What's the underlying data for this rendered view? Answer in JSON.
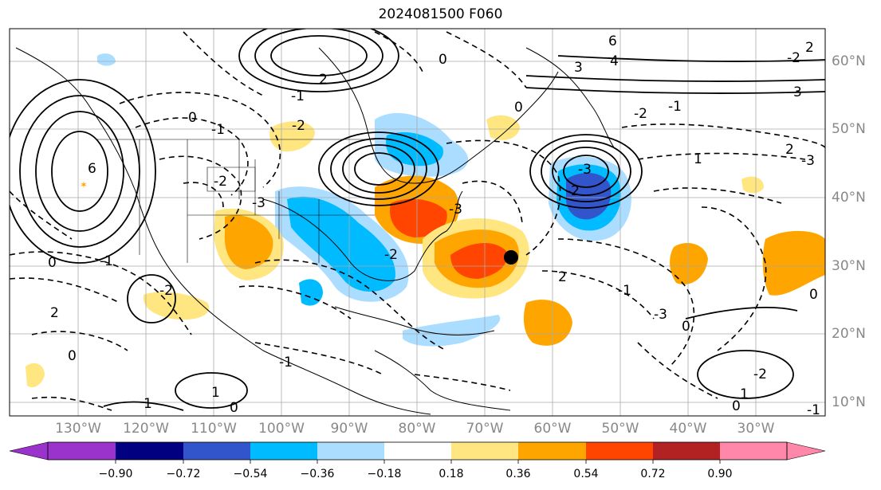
{
  "title": "2024081500 F060",
  "lon_labels": [
    "130°W",
    "120°W",
    "110°W",
    "100°W",
    "90°W",
    "80°W",
    "70°W",
    "60°W",
    "50°W",
    "40°W",
    "30°W"
  ],
  "lat_labels": [
    "60°N",
    "50°N",
    "40°N",
    "30°N",
    "20°N",
    "10°N"
  ],
  "colorbar": {
    "tick_labels": [
      "−0.90",
      "−0.72",
      "−0.54",
      "−0.36",
      "−0.18",
      "0.18",
      "0.36",
      "0.54",
      "0.72",
      "0.90"
    ],
    "colors": [
      "#9933cc",
      "#000080",
      "#3355cc",
      "#00bbff",
      "#aaddff",
      "#ffffff",
      "#ffe680",
      "#ffa500",
      "#ff4500",
      "#b22222",
      "#ff88aa"
    ]
  },
  "contour_labels": [
    "6",
    "-2",
    "0",
    "-1",
    "-3",
    "-2",
    "2",
    "-1",
    "-2",
    "-3",
    "0",
    "6",
    "4",
    "-3",
    "3",
    "-2",
    "2",
    "-1",
    "-2",
    "-3",
    "2",
    "1",
    "3",
    "-3",
    "-2",
    "0",
    "-1",
    "2",
    "0",
    "-1",
    "1",
    "0",
    "-1",
    "-2",
    "0",
    "1",
    "1",
    "0",
    "-2",
    "-1",
    "2",
    "0",
    "0"
  ]
}
